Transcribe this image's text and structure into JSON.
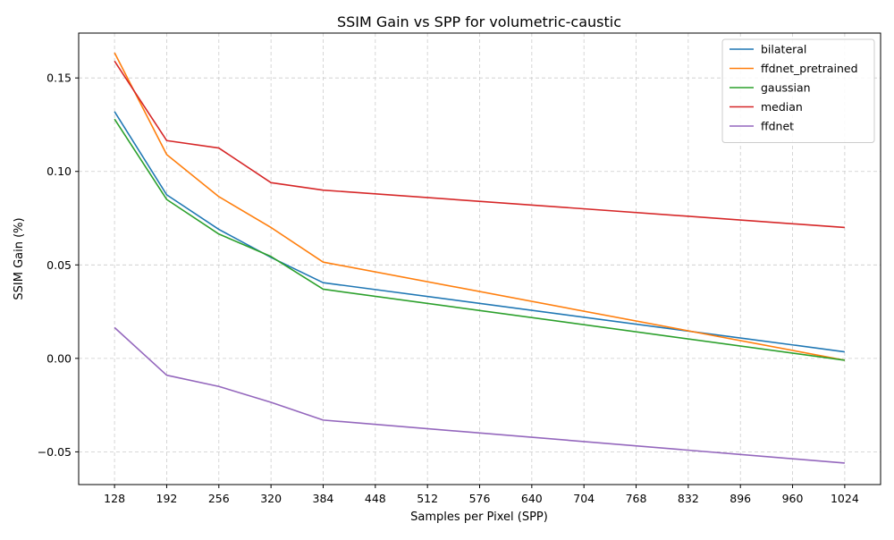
{
  "chart_data": {
    "type": "line",
    "title": "SSIM Gain vs SPP for volumetric-caustic",
    "xlabel": "Samples per Pixel (SPP)",
    "ylabel": "SSIM Gain (%)",
    "x": [
      128,
      192,
      256,
      320,
      384,
      1024
    ],
    "xticks": [
      128,
      192,
      256,
      320,
      384,
      448,
      512,
      576,
      640,
      704,
      768,
      832,
      896,
      960,
      1024
    ],
    "xlim": [
      84,
      1068
    ],
    "yticks": [
      -0.05,
      0.0,
      0.05,
      0.1,
      0.15
    ],
    "ytick_labels": [
      "−0.05",
      "0.00",
      "0.05",
      "0.10",
      "0.15"
    ],
    "ylim": [
      -0.0675,
      0.174
    ],
    "grid": true,
    "legend_position": "top-right",
    "series": [
      {
        "name": "bilateral",
        "color": "#1f77b4",
        "values": [
          0.132,
          0.0875,
          0.069,
          0.054,
          0.0405,
          0.0035
        ]
      },
      {
        "name": "ffdnet_pretrained",
        "color": "#ff7f0e",
        "values": [
          0.1635,
          0.109,
          0.0865,
          0.07,
          0.0515,
          -0.001
        ]
      },
      {
        "name": "gaussian",
        "color": "#2ca02c",
        "values": [
          0.128,
          0.085,
          0.0665,
          0.0545,
          0.037,
          -0.001
        ]
      },
      {
        "name": "median",
        "color": "#d62728",
        "values": [
          0.159,
          0.1165,
          0.1125,
          0.094,
          0.09,
          0.07
        ]
      },
      {
        "name": "ffdnet",
        "color": "#9467bd",
        "values": [
          0.0165,
          -0.009,
          -0.015,
          -0.0235,
          -0.033,
          -0.056
        ]
      }
    ]
  }
}
